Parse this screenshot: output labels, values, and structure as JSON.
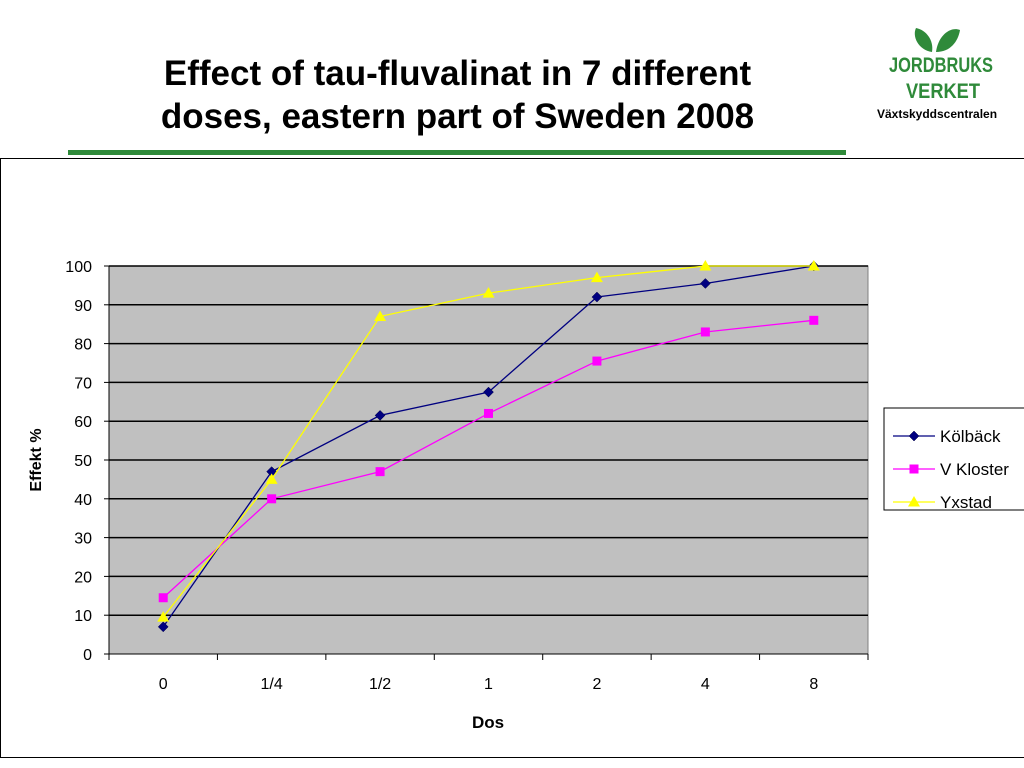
{
  "slide": {
    "title_line1": "Effect of tau-fluvalinat in 7 different",
    "title_line2": "doses, eastern part of Sweden 2008",
    "logo_line1": "JORDBRUKS",
    "logo_line2": "VERKET",
    "logo_sub": "Växtskyddscentralen",
    "colors": {
      "rule": "#2f8a3a",
      "logo_green": "#2f8a3a"
    }
  },
  "chart_data": {
    "type": "line",
    "categories": [
      "0",
      "1/4",
      "1/2",
      "1",
      "2",
      "4",
      "8"
    ],
    "xlabel": "Dos",
    "ylabel": "Effekt %",
    "ylim": [
      0,
      100
    ],
    "yticks": [
      0,
      10,
      20,
      30,
      40,
      50,
      60,
      70,
      80,
      90,
      100
    ],
    "grid": true,
    "plot_background": "#c0c0c0",
    "legend_position": "right",
    "series": [
      {
        "name": "Kölbäck",
        "color": "#000080",
        "marker": "diamond",
        "values": [
          7,
          47,
          61.5,
          67.5,
          92,
          95.5,
          100
        ]
      },
      {
        "name": "V Kloster",
        "color": "#ff00ff",
        "marker": "square",
        "values": [
          14.5,
          40,
          47,
          62,
          75.5,
          83,
          86
        ]
      },
      {
        "name": "Yxstad",
        "color": "#ffff00",
        "marker": "triangle",
        "values": [
          9.5,
          45,
          87,
          93,
          97,
          100,
          100
        ]
      }
    ]
  }
}
